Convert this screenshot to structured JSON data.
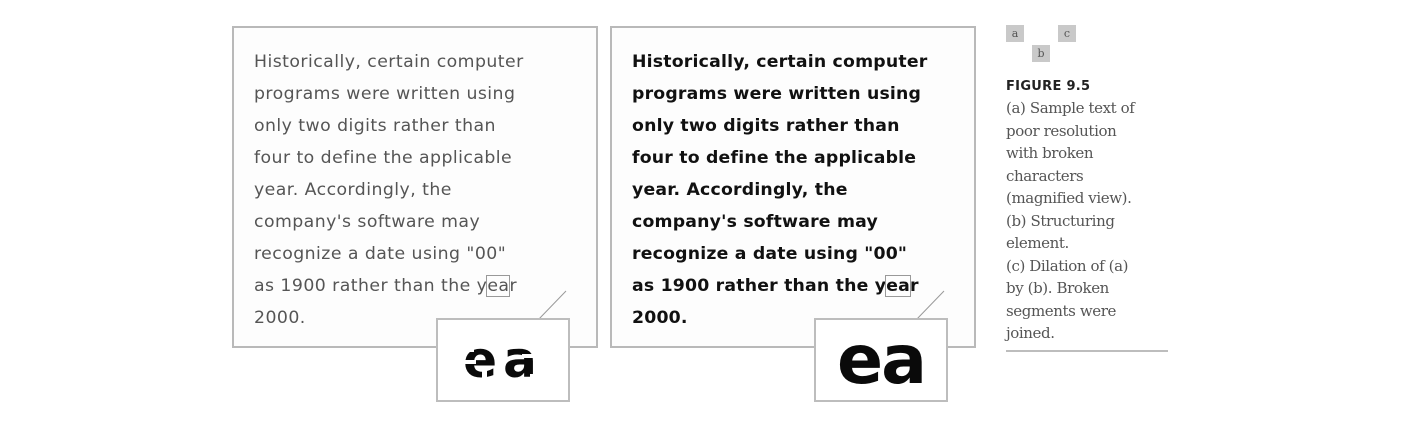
{
  "panel_a": {
    "lines": [
      "Historically, certain computer",
      "programs were written using",
      "only two digits rather than",
      "four to define the applicable",
      "year. Accordingly, the",
      "company's software may",
      "recognize a date using \"00\"",
      "as 1900 rather than the ",
      "2000."
    ],
    "last_word_pre": "y",
    "last_word_hl": "ea",
    "last_word_post": "r",
    "zoom_glyphs": "ea"
  },
  "panel_b": {
    "lines": [
      "Historically, certain computer",
      "programs were written using",
      "only two digits rather than",
      "four to define the applicable",
      "year. Accordingly, the",
      "company's software may",
      "recognize a date using \"00\"",
      "as 1900 rather than the ",
      "2000."
    ],
    "last_word_pre": "y",
    "last_word_hl": "ea",
    "last_word_post": "r",
    "zoom_glyphs": "ea"
  },
  "subfigure_labels": {
    "a": "a",
    "b": "b",
    "c": "c"
  },
  "caption": {
    "title": "FIGURE 9.5",
    "lines": [
      "(a) Sample text of",
      "poor resolution",
      "with broken",
      "characters",
      "(magnified view).",
      "(b) Structuring",
      "element.",
      "(c) Dilation of (a)",
      "by (b). Broken",
      "segments were",
      "joined."
    ]
  }
}
